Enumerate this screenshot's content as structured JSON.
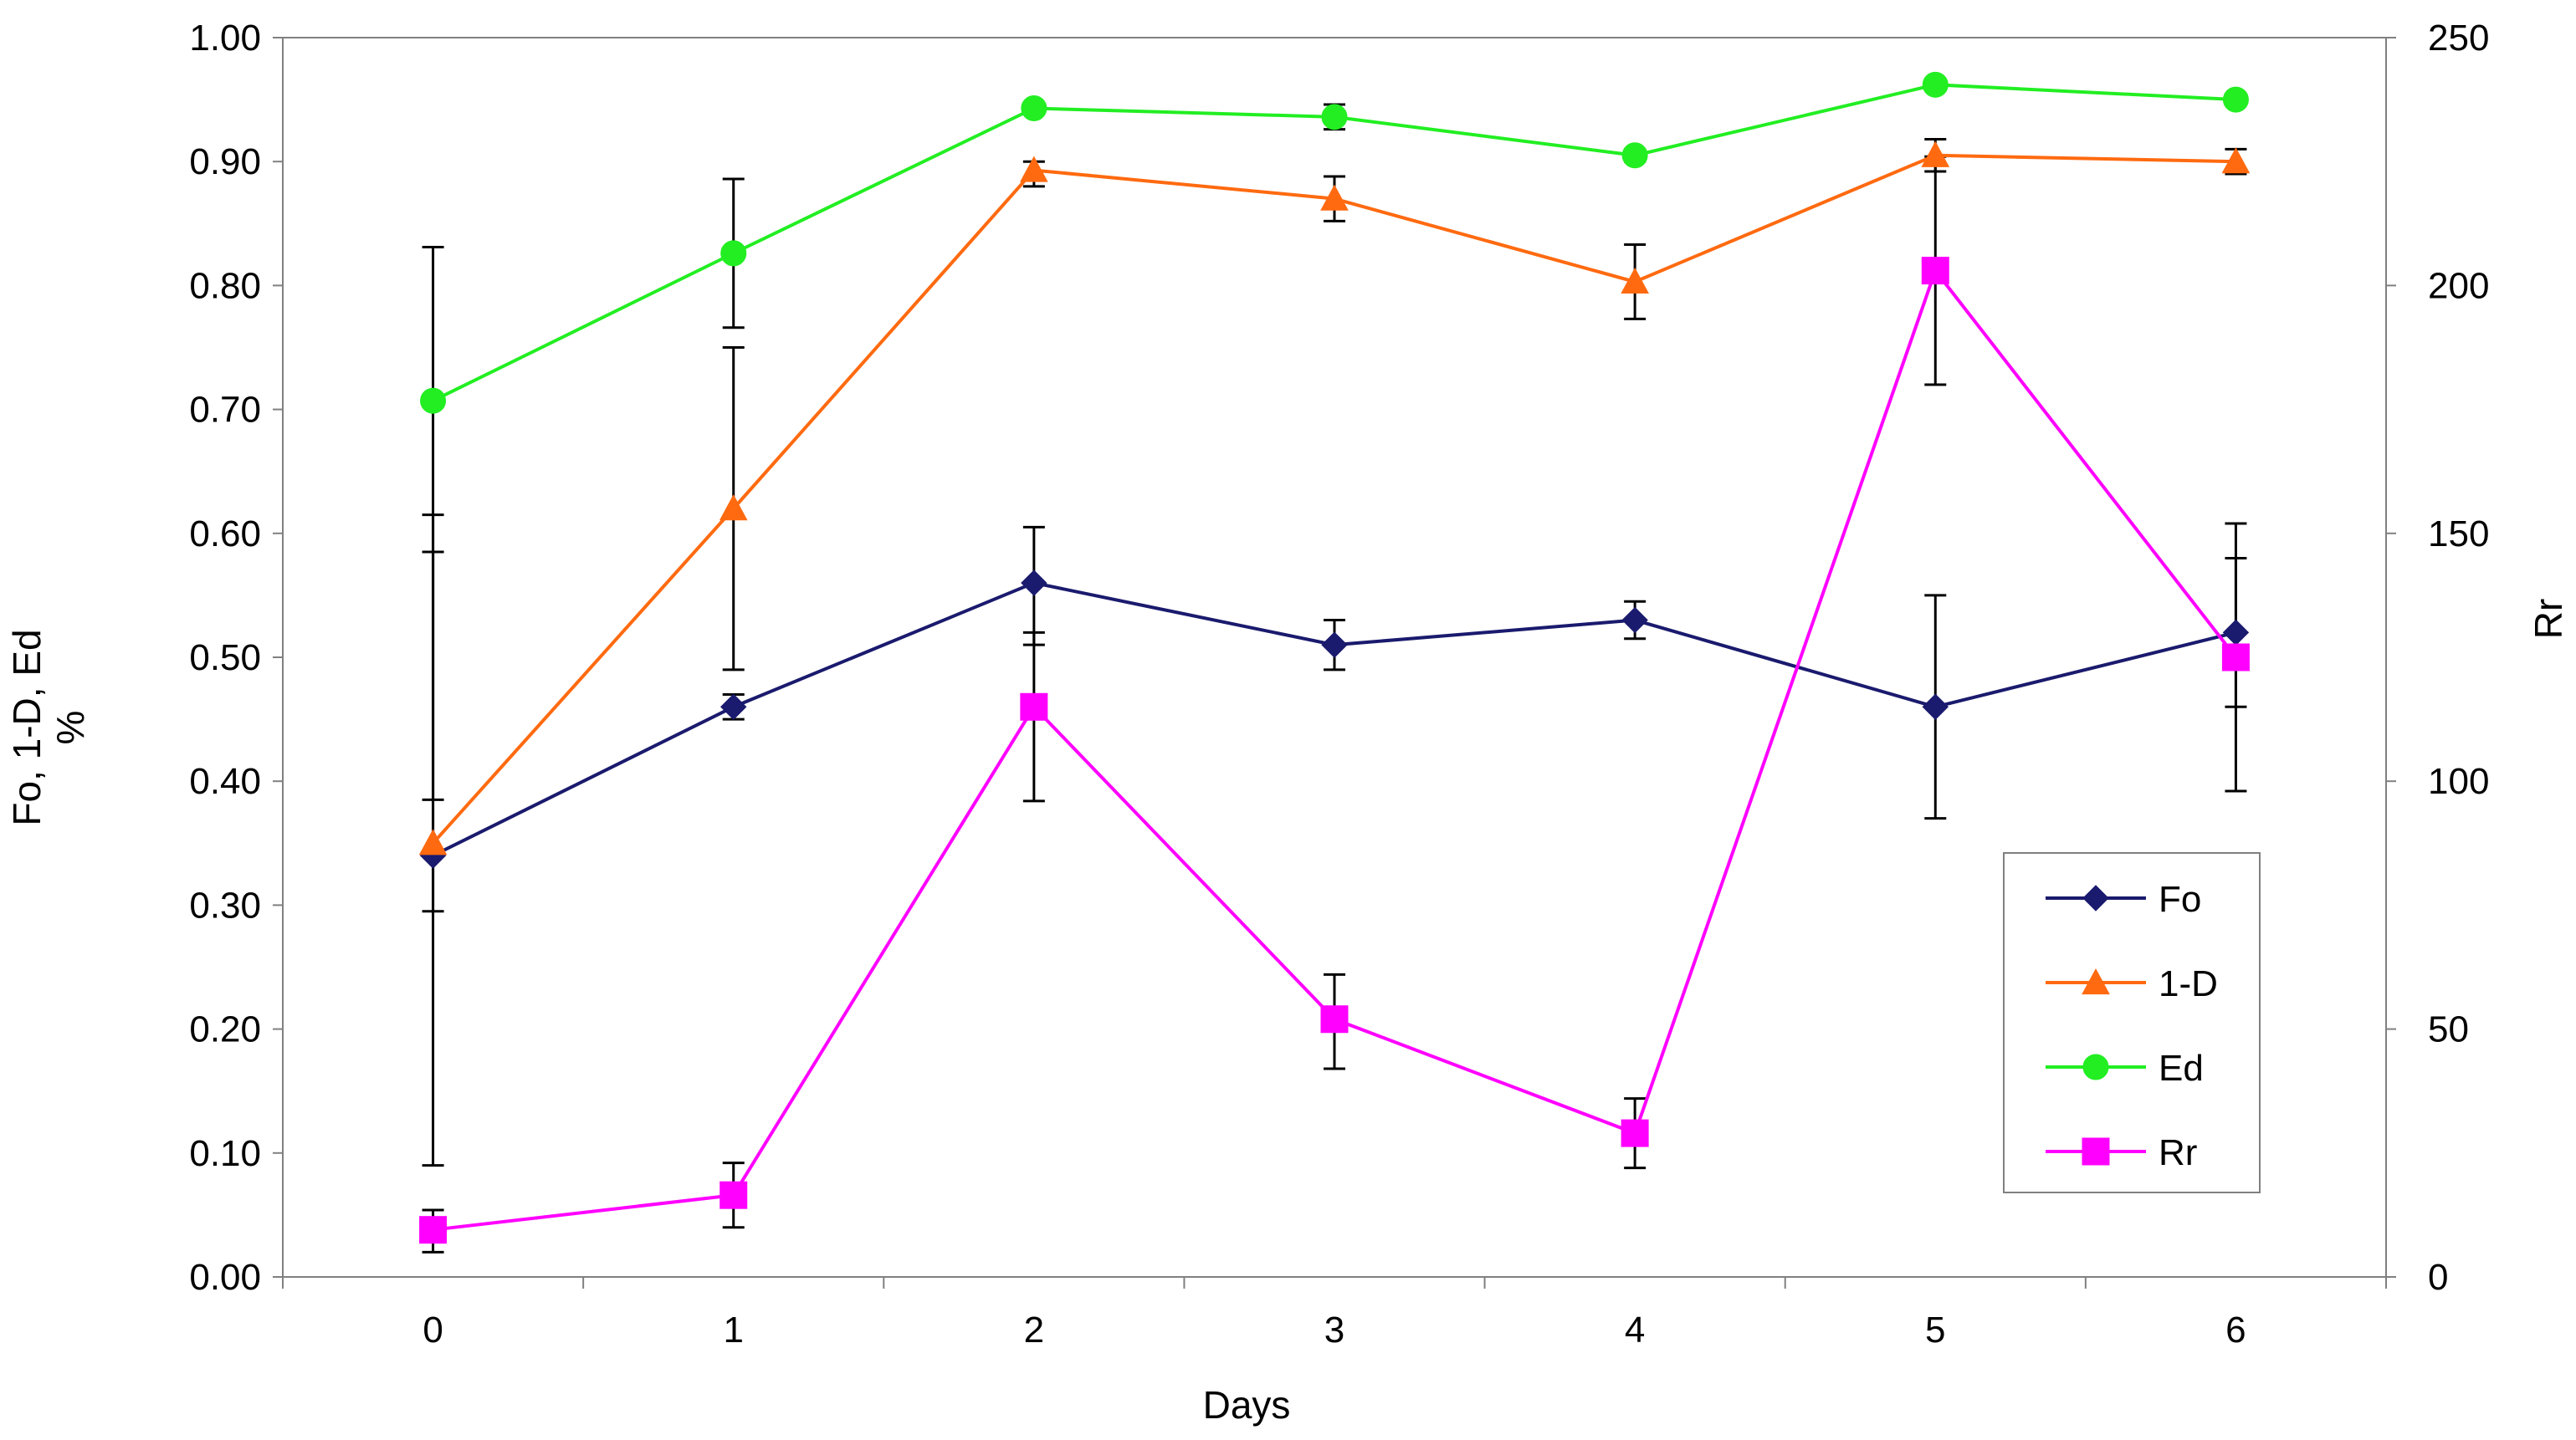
{
  "chart_data": {
    "type": "line",
    "x_title": "Days",
    "y_left_title_line1": "Fo, 1-D, Ed",
    "y_left_title_line2": "%",
    "y_right_title": "Rr",
    "x_categories": [
      "0",
      "1",
      "2",
      "3",
      "4",
      "5",
      "6"
    ],
    "x_values": [
      0,
      1,
      2,
      3,
      4,
      5,
      6
    ],
    "y_left_range": [
      0,
      1
    ],
    "y_left_ticks": [
      "0.00",
      "0.10",
      "0.20",
      "0.30",
      "0.40",
      "0.50",
      "0.60",
      "0.70",
      "0.80",
      "0.90",
      "1.00"
    ],
    "y_right_range": [
      0,
      250
    ],
    "y_right_ticks": [
      "0",
      "50",
      "100",
      "150",
      "200",
      "250"
    ],
    "legend": [
      "Fo",
      "1-D",
      "Ed",
      "Rr"
    ],
    "series": [
      {
        "name": "Fo",
        "axis": "left",
        "marker": "diamond",
        "color": "#1a1a6e",
        "values": [
          0.34,
          0.46,
          0.56,
          0.51,
          0.53,
          0.46,
          0.52
        ],
        "err_low": [
          0.09,
          0.45,
          0.51,
          0.49,
          0.515,
          0.37,
          0.46
        ],
        "err_high": [
          0.585,
          0.47,
          0.605,
          0.53,
          0.545,
          0.55,
          0.58
        ]
      },
      {
        "name": "1-D",
        "axis": "left",
        "marker": "triangle",
        "color": "#ff6a10",
        "values": [
          0.35,
          0.62,
          0.893,
          0.87,
          0.803,
          0.905,
          0.9
        ],
        "err_low": [
          0.295,
          0.49,
          0.88,
          0.852,
          0.773,
          0.892,
          0.89
        ],
        "err_high": [
          0.615,
          0.75,
          0.9,
          0.888,
          0.833,
          0.918,
          0.91
        ]
      },
      {
        "name": "Ed",
        "axis": "left",
        "marker": "circle",
        "color": "#22ee22",
        "values": [
          0.707,
          0.826,
          0.943,
          0.936,
          0.905,
          0.962,
          0.95
        ],
        "err_low": [
          0.385,
          0.766,
          0.94,
          0.926,
          0.9,
          0.958,
          0.946
        ],
        "err_high": [
          0.831,
          0.886,
          0.946,
          0.946,
          0.91,
          0.966,
          0.954
        ]
      },
      {
        "name": "Rr",
        "axis": "right",
        "marker": "square",
        "color": "#ff00ff",
        "values": [
          9.5,
          16.5,
          115,
          52,
          29,
          203,
          125
        ],
        "err_low": [
          5,
          10,
          96,
          42,
          22,
          180,
          98
        ],
        "err_high": [
          13.5,
          23,
          130,
          61,
          36,
          226,
          152
        ]
      }
    ]
  }
}
